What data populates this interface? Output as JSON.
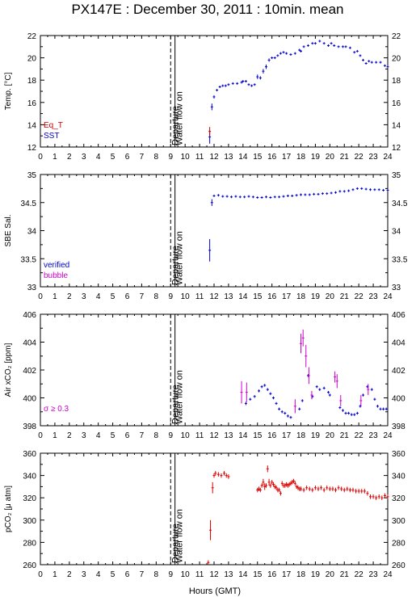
{
  "title": "PX147E : December 30, 2011 : 10min. mean",
  "x_axis": {
    "label": "Hours (GMT)",
    "range": [
      0,
      24
    ],
    "ticks": [
      "0",
      "1",
      "2",
      "3",
      "4",
      "5",
      "6",
      "7",
      "8",
      "9",
      "10",
      "11",
      "12",
      "13",
      "14",
      "15",
      "16",
      "17",
      "18",
      "19",
      "20",
      "21",
      "22",
      "23",
      "24"
    ]
  },
  "events": {
    "departure": {
      "hour": 9.0,
      "label": "Departure",
      "style": "dashed"
    },
    "water_flow_on": {
      "hour": 9.3,
      "label": "Water flow on",
      "style": "solid"
    }
  },
  "colors": {
    "eq_t": "#cc0000",
    "sst": "#0000cc",
    "verified": "#0000cc",
    "bubble": "#cc00cc",
    "sigma": "#cc00cc",
    "pco2": "#dd0000"
  },
  "chart_data": [
    {
      "type": "scatter",
      "ylabel": "Temp. [°C]",
      "ylim": [
        12,
        22
      ],
      "yticks": [
        "12",
        "14",
        "16",
        "18",
        "20",
        "22"
      ],
      "legend_position": "bottom-left",
      "legend": [
        {
          "label": "Eq_T",
          "color": "#cc0000"
        },
        {
          "label": "SST",
          "color": "#0000cc"
        }
      ],
      "series": [
        {
          "name": "SST",
          "color": "#0000cc",
          "x": [
            11.7,
            11.85,
            12.0,
            12.2,
            12.4,
            12.6,
            12.8,
            13.0,
            13.3,
            13.6,
            13.9,
            14.0,
            14.2,
            14.4,
            14.6,
            14.8,
            15.0,
            15.2,
            15.4,
            15.6,
            15.8,
            16.0,
            16.2,
            16.4,
            16.6,
            16.8,
            17.0,
            17.3,
            17.6,
            17.9,
            18.0,
            18.2,
            18.5,
            18.8,
            19.0,
            19.3,
            19.6,
            19.9,
            20.1,
            20.3,
            20.6,
            20.9,
            21.1,
            21.4,
            21.7,
            21.9,
            22.1,
            22.3,
            22.5,
            22.7,
            22.9,
            23.2,
            23.5,
            23.8,
            24.0
          ],
          "y": [
            12.9,
            15.6,
            16.5,
            17.1,
            17.4,
            17.5,
            17.5,
            17.6,
            17.7,
            17.7,
            17.8,
            17.9,
            17.9,
            17.6,
            17.5,
            17.6,
            18.3,
            18.2,
            18.8,
            19.2,
            19.8,
            20.0,
            20.0,
            20.2,
            20.4,
            20.5,
            20.4,
            20.3,
            20.4,
            20.7,
            20.6,
            21.0,
            21.1,
            21.3,
            21.3,
            21.5,
            21.3,
            21.1,
            21.3,
            21.1,
            21.0,
            21.0,
            21.0,
            20.9,
            20.5,
            20.6,
            20.2,
            19.8,
            19.5,
            19.7,
            19.6,
            19.6,
            19.6,
            19.3,
            19.2
          ],
          "err": [
            0.6,
            0.3,
            0.15,
            0.1,
            0.1,
            0.1,
            0.1,
            0.1,
            0.1,
            0.1,
            0.1,
            0.1,
            0.1,
            0.1,
            0.1,
            0.1,
            0.2,
            0.15,
            0.2,
            0.2,
            0.15,
            0.1,
            0.1,
            0.1,
            0.1,
            0.1,
            0.1,
            0.1,
            0.1,
            0.1,
            0.1,
            0.1,
            0.1,
            0.1,
            0.1,
            0.1,
            0.1,
            0.1,
            0.1,
            0.1,
            0.1,
            0.1,
            0.1,
            0.1,
            0.1,
            0.1,
            0.1,
            0.1,
            0.1,
            0.1,
            0.1,
            0.1,
            0.1,
            0.1,
            0.1
          ]
        },
        {
          "name": "Eq_T",
          "color": "#cc0000",
          "x": [
            11.7
          ],
          "y": [
            13.4
          ],
          "err": [
            0.4
          ]
        }
      ]
    },
    {
      "type": "scatter",
      "ylabel": "SBE Sal.",
      "ylim": [
        33,
        35
      ],
      "yticks": [
        "33",
        "33.5",
        "34",
        "34.5",
        "35"
      ],
      "legend_position": "bottom-left",
      "legend": [
        {
          "label": "verified",
          "color": "#0000cc"
        },
        {
          "label": "bubble",
          "color": "#cc00cc"
        }
      ],
      "series": [
        {
          "name": "verified",
          "color": "#0000cc",
          "x": [
            11.7,
            11.85,
            12.0,
            12.3,
            12.6,
            12.9,
            13.2,
            13.5,
            13.8,
            14.1,
            14.4,
            14.7,
            15.0,
            15.3,
            15.6,
            15.9,
            16.2,
            16.5,
            16.8,
            17.1,
            17.4,
            17.7,
            18.0,
            18.3,
            18.6,
            18.9,
            19.2,
            19.5,
            19.8,
            20.1,
            20.4,
            20.7,
            21.0,
            21.3,
            21.6,
            21.9,
            22.2,
            22.5,
            22.8,
            23.1,
            23.4,
            23.7,
            24.0
          ],
          "y": [
            33.65,
            34.5,
            34.62,
            34.63,
            34.61,
            34.61,
            34.6,
            34.61,
            34.6,
            34.6,
            34.61,
            34.6,
            34.59,
            34.59,
            34.6,
            34.59,
            34.6,
            34.6,
            34.61,
            34.62,
            34.62,
            34.63,
            34.64,
            34.64,
            34.64,
            34.65,
            34.65,
            34.66,
            34.66,
            34.67,
            34.68,
            34.7,
            34.7,
            34.71,
            34.73,
            34.75,
            34.75,
            34.74,
            34.73,
            34.73,
            34.73,
            34.72,
            34.72
          ],
          "err": [
            0.2,
            0.06,
            0.02,
            0.01,
            0.01,
            0.01,
            0.01,
            0.01,
            0.01,
            0.01,
            0.01,
            0.01,
            0.01,
            0.01,
            0.01,
            0.01,
            0.01,
            0.01,
            0.01,
            0.01,
            0.01,
            0.01,
            0.01,
            0.01,
            0.01,
            0.01,
            0.01,
            0.01,
            0.01,
            0.01,
            0.01,
            0.01,
            0.01,
            0.01,
            0.01,
            0.01,
            0.01,
            0.01,
            0.01,
            0.01,
            0.01,
            0.01,
            0.01
          ]
        }
      ]
    },
    {
      "type": "scatter",
      "ylabel": "Air xCO₂ [ppm]",
      "ylim": [
        398,
        406
      ],
      "yticks": [
        "398",
        "400",
        "402",
        "404",
        "406"
      ],
      "annotation": "σ ≥ 0.3",
      "series": [
        {
          "name": "verified",
          "color": "#0000cc",
          "x": [
            14.2,
            14.5,
            14.8,
            15.1,
            15.3,
            15.5,
            15.7,
            15.9,
            16.1,
            16.3,
            16.5,
            16.7,
            16.9,
            17.1,
            17.3,
            17.9,
            18.1,
            18.5,
            18.8,
            19.1,
            19.3,
            19.6,
            19.9,
            20.0,
            20.7,
            20.9,
            21.1,
            21.3,
            21.5,
            21.7,
            21.9,
            22.1,
            22.3,
            22.6,
            22.9,
            23.1,
            23.3,
            23.5,
            23.7,
            23.9
          ],
          "y": [
            399.6,
            399.9,
            400.1,
            400.5,
            400.8,
            400.9,
            400.6,
            400.3,
            400.0,
            399.6,
            399.2,
            399.0,
            398.9,
            398.7,
            398.6,
            399.2,
            399.8,
            401.6,
            400.1,
            400.8,
            400.6,
            400.7,
            400.4,
            400.2,
            399.3,
            399.1,
            398.9,
            398.9,
            398.8,
            398.8,
            398.9,
            399.4,
            400.2,
            400.8,
            400.6,
            399.9,
            399.4,
            399.2,
            399.2,
            399.2
          ],
          "err": [
            0.12,
            0.1,
            0.1,
            0.1,
            0.1,
            0.1,
            0.1,
            0.1,
            0.1,
            0.1,
            0.1,
            0.1,
            0.1,
            0.1,
            0.1,
            0.1,
            0.1,
            0.1,
            0.1,
            0.1,
            0.1,
            0.1,
            0.1,
            0.1,
            0.1,
            0.1,
            0.1,
            0.1,
            0.1,
            0.1,
            0.1,
            0.1,
            0.1,
            0.1,
            0.1,
            0.1,
            0.1,
            0.1,
            0.1,
            0.1
          ]
        },
        {
          "name": "σ ≥ 0.3",
          "color": "#cc00cc",
          "x": [
            13.9,
            14.25,
            17.6,
            18.0,
            18.15,
            18.35,
            18.55,
            18.75,
            20.35,
            20.5,
            20.75,
            22.15,
            22.65
          ],
          "y": [
            400.4,
            400.4,
            399.4,
            403.9,
            404.3,
            403.0,
            401.6,
            400.2,
            401.5,
            401.2,
            399.8,
            399.8,
            400.6
          ],
          "err": [
            0.8,
            0.7,
            0.5,
            0.7,
            0.6,
            0.8,
            0.6,
            0.3,
            0.4,
            0.5,
            0.4,
            0.4,
            0.4
          ]
        }
      ]
    },
    {
      "type": "scatter",
      "ylabel": "pCO₂ [μ atm]",
      "ylim": [
        260,
        360
      ],
      "yticks": [
        "260",
        "280",
        "300",
        "320",
        "340",
        "360"
      ],
      "series": [
        {
          "name": "pCO2",
          "color": "#dd0000",
          "x": [
            11.6,
            11.75,
            11.9,
            12.0,
            12.1,
            12.3,
            12.5,
            12.7,
            12.85,
            13.0,
            15.0,
            15.1,
            15.2,
            15.3,
            15.4,
            15.5,
            15.6,
            15.7,
            15.8,
            15.9,
            16.0,
            16.1,
            16.2,
            16.3,
            16.4,
            16.5,
            16.6,
            16.7,
            16.8,
            16.9,
            17.0,
            17.1,
            17.2,
            17.3,
            17.4,
            17.5,
            17.6,
            17.7,
            17.8,
            17.9,
            18.0,
            18.2,
            18.4,
            18.6,
            18.8,
            19.0,
            19.2,
            19.4,
            19.6,
            19.8,
            20.0,
            20.2,
            20.4,
            20.6,
            20.8,
            21.0,
            21.2,
            21.4,
            21.6,
            21.8,
            22.0,
            22.2,
            22.4,
            22.6,
            22.8,
            23.0,
            23.2,
            23.4,
            23.6,
            23.8,
            24.0
          ],
          "y": [
            262,
            291,
            329,
            340,
            342,
            341,
            340,
            342,
            340,
            339,
            327,
            328,
            327,
            331,
            334,
            330,
            331,
            346,
            334,
            331,
            334,
            332,
            330,
            329,
            327,
            327,
            324,
            333,
            331,
            331,
            332,
            331,
            332,
            333,
            334,
            335,
            333,
            330,
            329,
            328,
            328,
            327,
            329,
            328,
            327,
            329,
            328,
            329,
            327,
            329,
            328,
            328,
            327,
            329,
            328,
            327,
            328,
            327,
            327,
            326,
            326,
            326,
            326,
            324,
            321,
            321,
            320,
            321,
            320,
            322,
            321
          ],
          "err": [
            2,
            9,
            5,
            2,
            2,
            2,
            2,
            2,
            2,
            2,
            2,
            2,
            2,
            2,
            3,
            3,
            2,
            3,
            3,
            2,
            2,
            2,
            2,
            2,
            2,
            2,
            2,
            2,
            2,
            2,
            2,
            2,
            2,
            2,
            2,
            2,
            2,
            2,
            2,
            2,
            2,
            2,
            2,
            2,
            2,
            2,
            2,
            2,
            2,
            2,
            2,
            2,
            2,
            2,
            2,
            2,
            2,
            2,
            2,
            2,
            2,
            2,
            2,
            2,
            2,
            2,
            2,
            2,
            2,
            2,
            2
          ]
        }
      ]
    }
  ]
}
